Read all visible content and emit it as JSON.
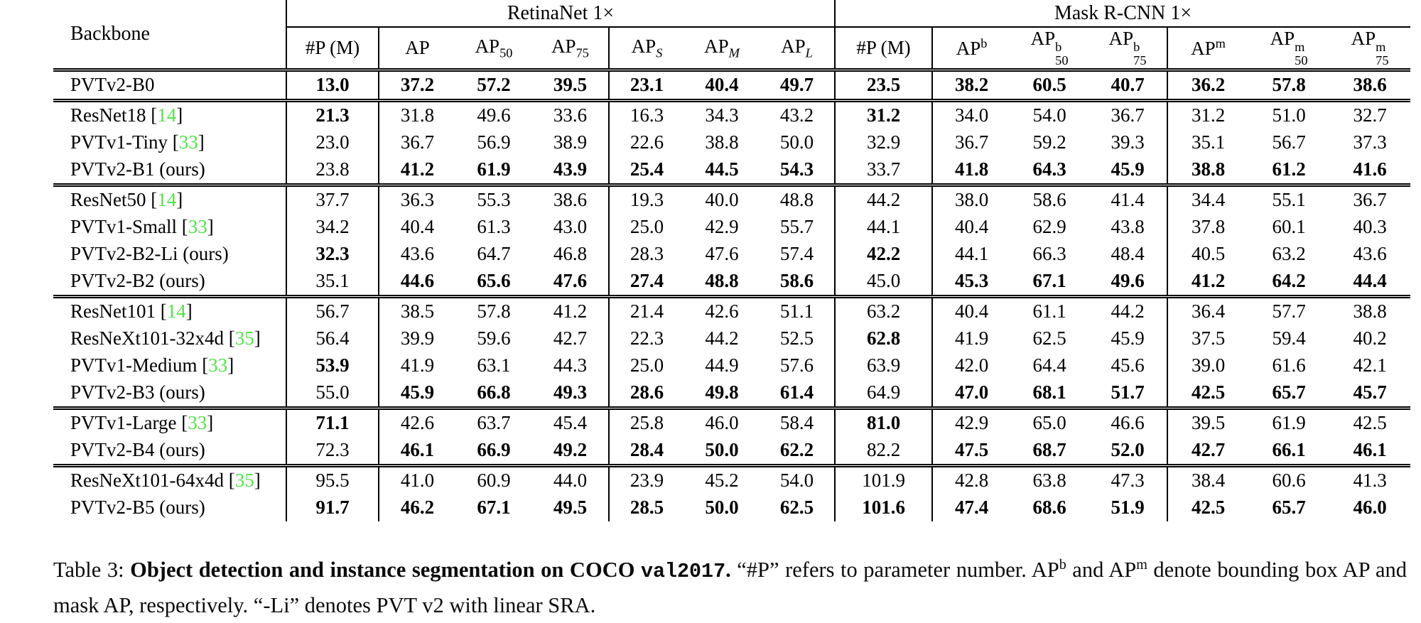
{
  "table": {
    "backbone_header": "Backbone",
    "group1": "RetinaNet 1×",
    "group2": "Mask R-CNN 1×",
    "sub_headers": [
      {
        "text": "#P (M)"
      },
      {
        "text": "AP"
      },
      {
        "text": "AP",
        "sub": "50"
      },
      {
        "text": "AP",
        "sub": "75"
      },
      {
        "text": "AP",
        "subi": "S"
      },
      {
        "text": "AP",
        "subi": "M"
      },
      {
        "text": "AP",
        "subi": "L"
      },
      {
        "text": "#P (M)"
      },
      {
        "text": "AP",
        "sup": "b"
      },
      {
        "text": "AP",
        "sup": "b",
        "sub": "50"
      },
      {
        "text": "AP",
        "sup": "b",
        "sub": "75"
      },
      {
        "text": "AP",
        "sup": "m"
      },
      {
        "text": "AP",
        "sup": "m",
        "sub": "50"
      },
      {
        "text": "AP",
        "sup": "m",
        "sub": "75"
      }
    ],
    "rows": [
      {
        "name": "PVTv2-B0",
        "cite": null,
        "group_start": false,
        "vals": [
          "13.0",
          "37.2",
          "57.2",
          "39.5",
          "23.1",
          "40.4",
          "49.7",
          "23.5",
          "38.2",
          "60.5",
          "40.7",
          "36.2",
          "57.8",
          "38.6"
        ],
        "bold": [
          1,
          1,
          1,
          1,
          1,
          1,
          1,
          1,
          1,
          1,
          1,
          1,
          1,
          1
        ]
      },
      {
        "name": "ResNet18",
        "cite": "14",
        "group_start": true,
        "vals": [
          "21.3",
          "31.8",
          "49.6",
          "33.6",
          "16.3",
          "34.3",
          "43.2",
          "31.2",
          "34.0",
          "54.0",
          "36.7",
          "31.2",
          "51.0",
          "32.7"
        ],
        "bold": [
          1,
          0,
          0,
          0,
          0,
          0,
          0,
          1,
          0,
          0,
          0,
          0,
          0,
          0
        ]
      },
      {
        "name": "PVTv1-Tiny",
        "cite": "33",
        "group_start": false,
        "vals": [
          "23.0",
          "36.7",
          "56.9",
          "38.9",
          "22.6",
          "38.8",
          "50.0",
          "32.9",
          "36.7",
          "59.2",
          "39.3",
          "35.1",
          "56.7",
          "37.3"
        ],
        "bold": [
          0,
          0,
          0,
          0,
          0,
          0,
          0,
          0,
          0,
          0,
          0,
          0,
          0,
          0
        ]
      },
      {
        "name": "PVTv2-B1 (ours)",
        "cite": null,
        "group_start": false,
        "vals": [
          "23.8",
          "41.2",
          "61.9",
          "43.9",
          "25.4",
          "44.5",
          "54.3",
          "33.7",
          "41.8",
          "64.3",
          "45.9",
          "38.8",
          "61.2",
          "41.6"
        ],
        "bold": [
          0,
          1,
          1,
          1,
          1,
          1,
          1,
          0,
          1,
          1,
          1,
          1,
          1,
          1
        ]
      },
      {
        "name": "ResNet50",
        "cite": "14",
        "group_start": true,
        "vals": [
          "37.7",
          "36.3",
          "55.3",
          "38.6",
          "19.3",
          "40.0",
          "48.8",
          "44.2",
          "38.0",
          "58.6",
          "41.4",
          "34.4",
          "55.1",
          "36.7"
        ],
        "bold": [
          0,
          0,
          0,
          0,
          0,
          0,
          0,
          0,
          0,
          0,
          0,
          0,
          0,
          0
        ]
      },
      {
        "name": "PVTv1-Small",
        "cite": "33",
        "group_start": false,
        "vals": [
          "34.2",
          "40.4",
          "61.3",
          "43.0",
          "25.0",
          "42.9",
          "55.7",
          "44.1",
          "40.4",
          "62.9",
          "43.8",
          "37.8",
          "60.1",
          "40.3"
        ],
        "bold": [
          0,
          0,
          0,
          0,
          0,
          0,
          0,
          0,
          0,
          0,
          0,
          0,
          0,
          0
        ]
      },
      {
        "name": "PVTv2-B2-Li (ours)",
        "cite": null,
        "group_start": false,
        "vals": [
          "32.3",
          "43.6",
          "64.7",
          "46.8",
          "28.3",
          "47.6",
          "57.4",
          "42.2",
          "44.1",
          "66.3",
          "48.4",
          "40.5",
          "63.2",
          "43.6"
        ],
        "bold": [
          1,
          0,
          0,
          0,
          0,
          0,
          0,
          1,
          0,
          0,
          0,
          0,
          0,
          0
        ]
      },
      {
        "name": "PVTv2-B2 (ours)",
        "cite": null,
        "group_start": false,
        "vals": [
          "35.1",
          "44.6",
          "65.6",
          "47.6",
          "27.4",
          "48.8",
          "58.6",
          "45.0",
          "45.3",
          "67.1",
          "49.6",
          "41.2",
          "64.2",
          "44.4"
        ],
        "bold": [
          0,
          1,
          1,
          1,
          1,
          1,
          1,
          0,
          1,
          1,
          1,
          1,
          1,
          1
        ]
      },
      {
        "name": "ResNet101",
        "cite": "14",
        "group_start": true,
        "vals": [
          "56.7",
          "38.5",
          "57.8",
          "41.2",
          "21.4",
          "42.6",
          "51.1",
          "63.2",
          "40.4",
          "61.1",
          "44.2",
          "36.4",
          "57.7",
          "38.8"
        ],
        "bold": [
          0,
          0,
          0,
          0,
          0,
          0,
          0,
          0,
          0,
          0,
          0,
          0,
          0,
          0
        ]
      },
      {
        "name": "ResNeXt101-32x4d",
        "cite": "35",
        "group_start": false,
        "vals": [
          "56.4",
          "39.9",
          "59.6",
          "42.7",
          "22.3",
          "44.2",
          "52.5",
          "62.8",
          "41.9",
          "62.5",
          "45.9",
          "37.5",
          "59.4",
          "40.2"
        ],
        "bold": [
          0,
          0,
          0,
          0,
          0,
          0,
          0,
          1,
          0,
          0,
          0,
          0,
          0,
          0
        ]
      },
      {
        "name": "PVTv1-Medium",
        "cite": "33",
        "group_start": false,
        "vals": [
          "53.9",
          "41.9",
          "63.1",
          "44.3",
          "25.0",
          "44.9",
          "57.6",
          "63.9",
          "42.0",
          "64.4",
          "45.6",
          "39.0",
          "61.6",
          "42.1"
        ],
        "bold": [
          1,
          0,
          0,
          0,
          0,
          0,
          0,
          0,
          0,
          0,
          0,
          0,
          0,
          0
        ]
      },
      {
        "name": "PVTv2-B3 (ours)",
        "cite": null,
        "group_start": false,
        "vals": [
          "55.0",
          "45.9",
          "66.8",
          "49.3",
          "28.6",
          "49.8",
          "61.4",
          "64.9",
          "47.0",
          "68.1",
          "51.7",
          "42.5",
          "65.7",
          "45.7"
        ],
        "bold": [
          0,
          1,
          1,
          1,
          1,
          1,
          1,
          0,
          1,
          1,
          1,
          1,
          1,
          1
        ]
      },
      {
        "name": "PVTv1-Large",
        "cite": "33",
        "group_start": true,
        "vals": [
          "71.1",
          "42.6",
          "63.7",
          "45.4",
          "25.8",
          "46.0",
          "58.4",
          "81.0",
          "42.9",
          "65.0",
          "46.6",
          "39.5",
          "61.9",
          "42.5"
        ],
        "bold": [
          1,
          0,
          0,
          0,
          0,
          0,
          0,
          1,
          0,
          0,
          0,
          0,
          0,
          0
        ]
      },
      {
        "name": "PVTv2-B4 (ours)",
        "cite": null,
        "group_start": false,
        "vals": [
          "72.3",
          "46.1",
          "66.9",
          "49.2",
          "28.4",
          "50.0",
          "62.2",
          "82.2",
          "47.5",
          "68.7",
          "52.0",
          "42.7",
          "66.1",
          "46.1"
        ],
        "bold": [
          0,
          1,
          1,
          1,
          1,
          1,
          1,
          0,
          1,
          1,
          1,
          1,
          1,
          1
        ]
      },
      {
        "name": "ResNeXt101-64x4d",
        "cite": "35",
        "group_start": true,
        "vals": [
          "95.5",
          "41.0",
          "60.9",
          "44.0",
          "23.9",
          "45.2",
          "54.0",
          "101.9",
          "42.8",
          "63.8",
          "47.3",
          "38.4",
          "60.6",
          "41.3"
        ],
        "bold": [
          0,
          0,
          0,
          0,
          0,
          0,
          0,
          0,
          0,
          0,
          0,
          0,
          0,
          0
        ]
      },
      {
        "name": "PVTv2-B5 (ours)",
        "cite": null,
        "group_start": false,
        "vals": [
          "91.7",
          "46.2",
          "67.1",
          "49.5",
          "28.5",
          "50.0",
          "62.5",
          "101.6",
          "47.4",
          "68.6",
          "51.9",
          "42.5",
          "65.7",
          "46.0"
        ],
        "bold": [
          1,
          1,
          1,
          1,
          1,
          1,
          1,
          1,
          1,
          1,
          1,
          1,
          1,
          1
        ]
      }
    ]
  },
  "caption": {
    "prefix": "Table 3: ",
    "bold_main": "Object detection and instance segmentation on COCO ",
    "mono": "val2017",
    "bold_period": ".",
    "rest_1": " “#P” refers to parameter number.  AP",
    "sup_b": "b",
    "rest_2": " and AP",
    "sup_m": "m",
    "rest_3": " denote bounding box AP and mask AP, respectively. “-Li” denotes PVT v2 with linear SRA."
  }
}
